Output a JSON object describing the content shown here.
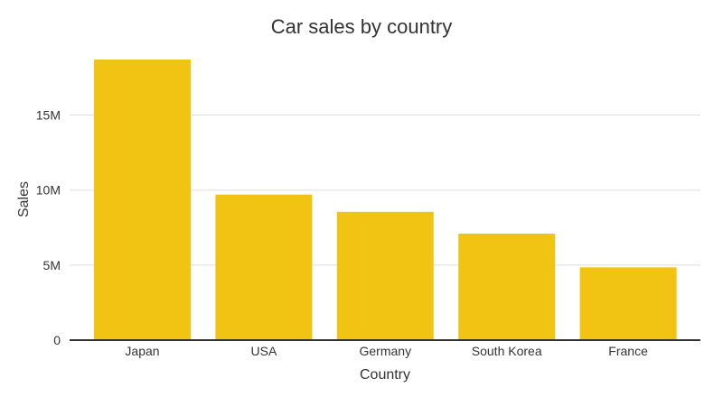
{
  "chart_data": {
    "type": "bar",
    "title": "Car sales by country",
    "xlabel": "Country",
    "ylabel": "Sales",
    "categories": [
      "Japan",
      "USA",
      "Germany",
      "South Korea",
      "France"
    ],
    "values": [
      18700000,
      9700000,
      8550000,
      7100000,
      4850000
    ],
    "ylim": [
      0,
      18700000
    ],
    "yticks": [
      0,
      5000000,
      10000000,
      15000000
    ],
    "ytick_labels": [
      "0",
      "5M",
      "10M",
      "15M"
    ],
    "grid": true,
    "legend": "none",
    "colors": {
      "bar": "#f1c313",
      "grid": "#dddddd",
      "axis": "#333333",
      "text": "#333333"
    }
  }
}
